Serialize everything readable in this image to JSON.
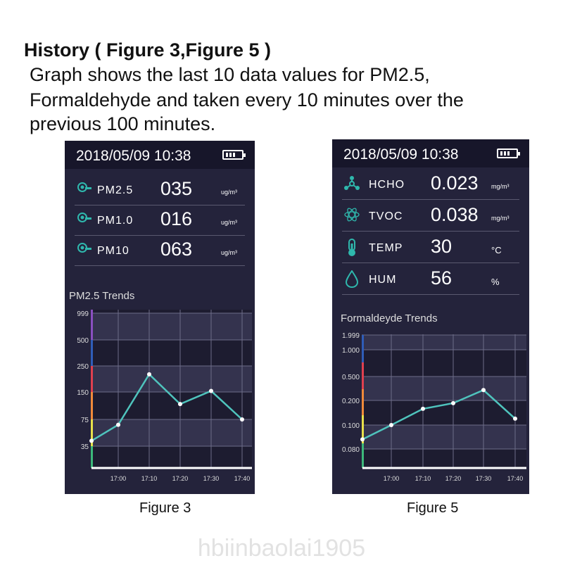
{
  "heading": "History ( Figure 3,Figure 5 )",
  "description": [
    "Graph shows the last 10 data values for PM2.5,",
    "Formaldehyde and taken every 10 minutes over the",
    "previous 100 minutes."
  ],
  "watermark": "hbiinbaolai1905",
  "figure3": {
    "caption": "Figure 3",
    "datetime": "2018/05/09  10:38",
    "battery_icon": "battery-icon",
    "rows": [
      {
        "icon": "particle-sensor-icon",
        "label": "PM2.5",
        "value": "035",
        "unit": "ug/m³"
      },
      {
        "icon": "particle-sensor-icon",
        "label": "PM1.0",
        "value": "016",
        "unit": "ug/m³"
      },
      {
        "icon": "particle-sensor-icon",
        "label": "PM10",
        "value": "063",
        "unit": "ug/m³"
      }
    ]
  },
  "figure5": {
    "caption": "Figure 5",
    "datetime": "2018/05/09  10:38",
    "battery_icon": "battery-icon",
    "rows": [
      {
        "icon": "molecule-icon",
        "label": "HCHO",
        "value": "0.023",
        "unit": "mg/m³"
      },
      {
        "icon": "atom-icon",
        "label": "TVOC",
        "value": "0.038",
        "unit": "mg/m³"
      },
      {
        "icon": "thermometer-icon",
        "label": "TEMP",
        "value": "30",
        "unit": "°C"
      },
      {
        "icon": "droplet-icon",
        "label": "HUM",
        "value": "56",
        "unit": "%"
      }
    ]
  },
  "colors": {
    "panel": "#24233b",
    "header": "#17162a",
    "line": "#4fc4bd",
    "point": "#ffffff",
    "accent": "#2fb8ad"
  },
  "chart_data": [
    {
      "type": "line",
      "title": "PM2.5 Trends",
      "x": [
        "",
        "17:00",
        "17:10",
        "17:20",
        "17:30",
        "17:40"
      ],
      "values": [
        43,
        67,
        218,
        117,
        154,
        75
      ],
      "yticks": [
        "999",
        "500",
        "250",
        "150",
        "75",
        "35"
      ],
      "y_scale": "ordinal bands",
      "grid": true,
      "band_colors": [
        "#8a4fc0",
        "#2f5db8",
        "#e0404f",
        "#f08a3a",
        "#e8e04a",
        "#3cb87a"
      ]
    },
    {
      "type": "line",
      "title": "Formaldeyde Trends",
      "x": [
        "",
        "17:00",
        "17:10",
        "17:20",
        "17:30",
        "17:40"
      ],
      "values": [
        0.088,
        0.1,
        0.166,
        0.189,
        0.33,
        0.126
      ],
      "yticks": [
        "1.999",
        "1.000",
        "0.500",
        "0.200",
        "0.100",
        "0.080"
      ],
      "y_scale": "ordinal bands",
      "grid": true,
      "band_colors": [
        "#2f5db8",
        "#e0404f",
        "#f08a3a",
        "#e8e04a",
        "#3cb87a"
      ]
    }
  ]
}
